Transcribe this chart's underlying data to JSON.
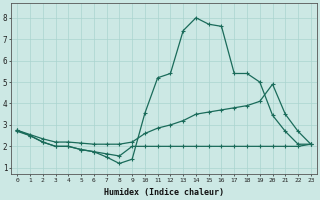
{
  "xlabel": "Humidex (Indice chaleur)",
  "bg_color": "#cce8e4",
  "grid_color": "#aad4cf",
  "line_color": "#1a6b5a",
  "xlim": [
    -0.5,
    23.5
  ],
  "ylim": [
    0.7,
    8.7
  ],
  "xticks": [
    0,
    1,
    2,
    3,
    4,
    5,
    6,
    7,
    8,
    9,
    10,
    11,
    12,
    13,
    14,
    15,
    16,
    17,
    18,
    19,
    20,
    21,
    22,
    23
  ],
  "yticks": [
    1,
    2,
    3,
    4,
    5,
    6,
    7,
    8
  ],
  "line1_x": [
    0,
    1,
    2,
    3,
    4,
    5,
    6,
    7,
    8,
    9,
    10,
    11,
    12,
    13,
    14,
    15,
    16,
    17,
    18,
    19,
    20,
    21,
    22,
    23
  ],
  "line1_y": [
    2.7,
    2.5,
    2.2,
    2.0,
    2.0,
    1.85,
    1.75,
    1.65,
    1.55,
    2.0,
    2.0,
    2.0,
    2.0,
    2.0,
    2.0,
    2.0,
    2.0,
    2.0,
    2.0,
    2.0,
    2.0,
    2.0,
    2.0,
    2.1
  ],
  "line2_x": [
    0,
    1,
    2,
    3,
    4,
    5,
    6,
    7,
    8,
    9,
    10,
    11,
    12,
    13,
    14,
    15,
    16,
    17,
    18,
    19,
    20,
    21,
    22,
    23
  ],
  "line2_y": [
    2.75,
    2.55,
    2.35,
    2.2,
    2.2,
    2.15,
    2.1,
    2.1,
    2.1,
    2.2,
    2.6,
    2.85,
    3.0,
    3.2,
    3.5,
    3.6,
    3.7,
    3.8,
    3.9,
    4.1,
    4.9,
    3.5,
    2.7,
    2.1
  ],
  "line3_x": [
    0,
    1,
    2,
    3,
    4,
    5,
    6,
    7,
    8,
    9,
    10,
    11,
    12,
    13,
    14,
    15,
    16,
    17,
    18,
    19,
    20,
    21,
    22,
    23
  ],
  "line3_y": [
    2.75,
    2.5,
    2.2,
    2.0,
    2.0,
    1.85,
    1.75,
    1.5,
    1.2,
    1.4,
    3.55,
    5.2,
    5.4,
    7.4,
    8.0,
    7.7,
    7.6,
    5.4,
    5.4,
    5.0,
    3.45,
    2.7,
    2.1,
    2.1
  ]
}
